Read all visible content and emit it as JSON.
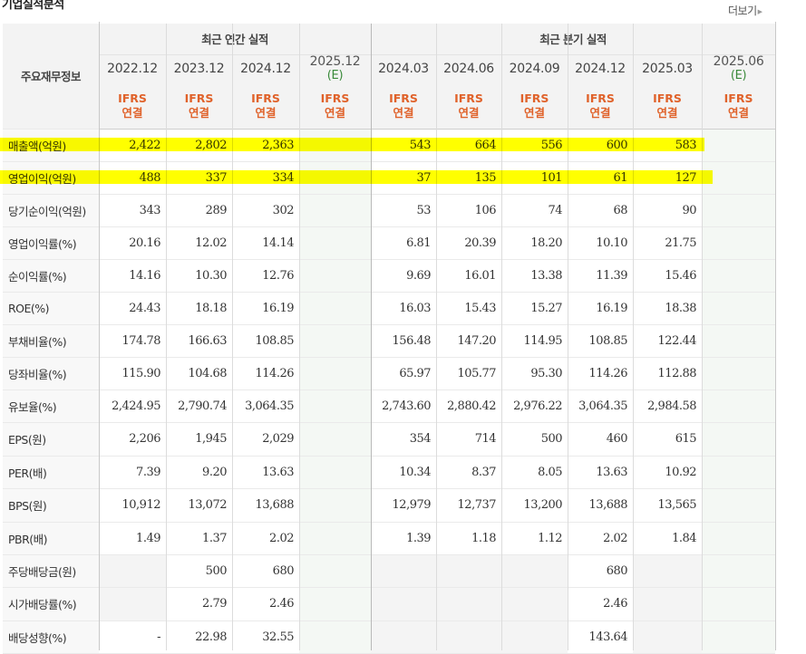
{
  "header": {
    "title": "기업실적분석",
    "more_label": "더보기"
  },
  "table": {
    "corner_label": "주요재무정보",
    "annual_section_label": "최근 연간 실적",
    "quarterly_section_label": "최근 분기 실적",
    "annual_periods": [
      "2022.12",
      "2023.12",
      "2024.12"
    ],
    "annual_estimate_period": "2025.12",
    "quarter_periods": [
      "2024.03",
      "2024.06",
      "2024.09",
      "2024.12",
      "2025.03"
    ],
    "quarter_estimate_period": "2025.06",
    "estimate_mark": "(E)",
    "basis_line1": "IFRS",
    "basis_line2": "연결",
    "rows": [
      {
        "label": "매출액(억원)",
        "values": [
          "2,422",
          "2,802",
          "2,363",
          "",
          "543",
          "664",
          "556",
          "600",
          "583",
          ""
        ]
      },
      {
        "label": "영업이익(억원)",
        "values": [
          "488",
          "337",
          "334",
          "",
          "37",
          "135",
          "101",
          "61",
          "127",
          ""
        ]
      },
      {
        "label": "당기순이익(억원)",
        "values": [
          "343",
          "289",
          "302",
          "",
          "53",
          "106",
          "74",
          "68",
          "90",
          ""
        ]
      },
      {
        "label": "영업이익률(%)",
        "values": [
          "20.16",
          "12.02",
          "14.14",
          "",
          "6.81",
          "20.39",
          "18.20",
          "10.10",
          "21.75",
          ""
        ]
      },
      {
        "label": "순이익률(%)",
        "values": [
          "14.16",
          "10.30",
          "12.76",
          "",
          "9.69",
          "16.01",
          "13.38",
          "11.39",
          "15.46",
          ""
        ]
      },
      {
        "label": "ROE(%)",
        "values": [
          "24.43",
          "18.18",
          "16.19",
          "",
          "16.03",
          "15.43",
          "15.27",
          "16.19",
          "18.38",
          ""
        ]
      },
      {
        "label": "부채비율(%)",
        "values": [
          "174.78",
          "166.63",
          "108.85",
          "",
          "156.48",
          "147.20",
          "114.95",
          "108.85",
          "122.44",
          ""
        ]
      },
      {
        "label": "당좌비율(%)",
        "values": [
          "115.90",
          "104.68",
          "114.26",
          "",
          "65.97",
          "105.77",
          "95.30",
          "114.26",
          "112.88",
          ""
        ]
      },
      {
        "label": "유보율(%)",
        "values": [
          "2,424.95",
          "2,790.74",
          "3,064.35",
          "",
          "2,743.60",
          "2,880.42",
          "2,976.22",
          "3,064.35",
          "2,984.58",
          ""
        ]
      },
      {
        "label": "EPS(원)",
        "values": [
          "2,206",
          "1,945",
          "2,029",
          "",
          "354",
          "714",
          "500",
          "460",
          "615",
          ""
        ]
      },
      {
        "label": "PER(배)",
        "values": [
          "7.39",
          "9.20",
          "13.63",
          "",
          "10.34",
          "8.37",
          "8.05",
          "13.63",
          "10.92",
          ""
        ]
      },
      {
        "label": "BPS(원)",
        "values": [
          "10,912",
          "13,072",
          "13,688",
          "",
          "12,979",
          "12,737",
          "13,200",
          "13,688",
          "13,565",
          ""
        ]
      },
      {
        "label": "PBR(배)",
        "values": [
          "1.49",
          "1.37",
          "2.02",
          "",
          "1.39",
          "1.18",
          "1.12",
          "2.02",
          "1.84",
          ""
        ]
      },
      {
        "label": "주당배당금(원)",
        "values": [
          "",
          "500",
          "680",
          "",
          "",
          "",
          "",
          "680",
          "",
          ""
        ]
      },
      {
        "label": "시가배당률(%)",
        "values": [
          "",
          "2.79",
          "2.46",
          "",
          "",
          "",
          "",
          "2.46",
          "",
          ""
        ]
      },
      {
        "label": "배당성향(%)",
        "values": [
          "-",
          "22.98",
          "32.55",
          "",
          "",
          "",
          "",
          "143.64",
          "",
          ""
        ]
      }
    ]
  }
}
